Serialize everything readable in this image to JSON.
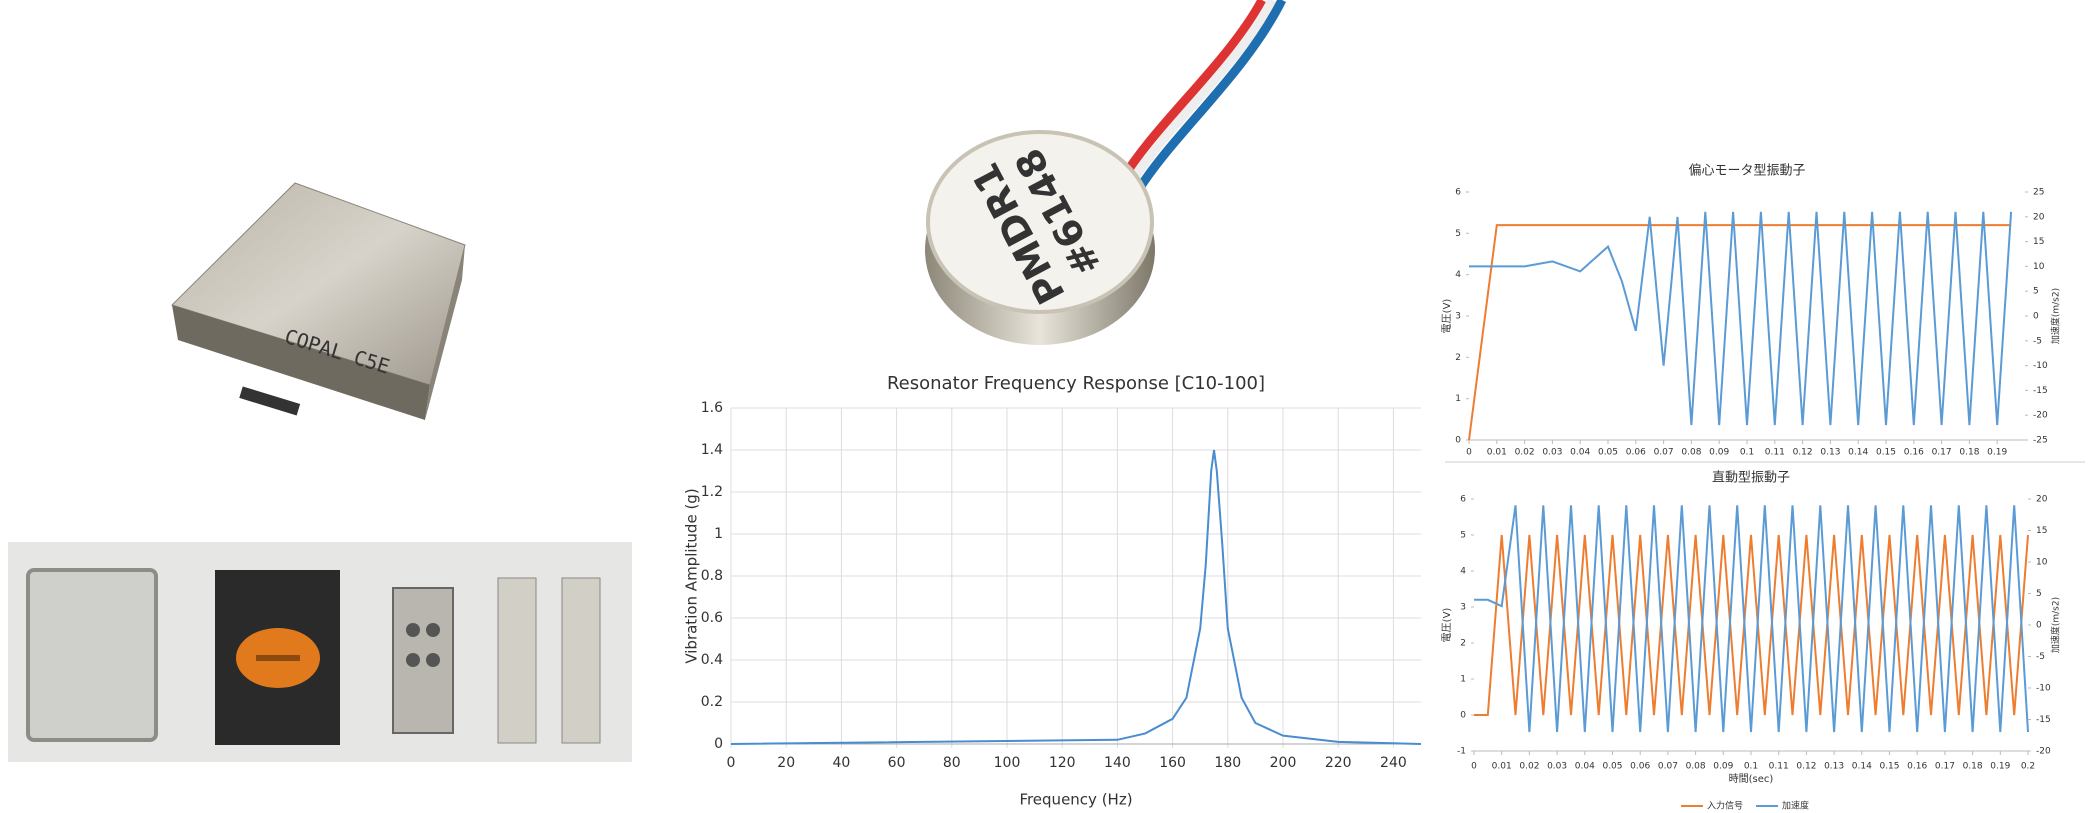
{
  "photos": {
    "module_label": "COPAL C5E",
    "motor_label": "PMDR1",
    "motor_number": "#6148"
  },
  "chart_data": [
    {
      "type": "line",
      "title": "Resonator Frequency Response [C10-100]",
      "xlabel": "Frequency (Hz)",
      "ylabel": "Vibration Amplitude (g)",
      "x": [
        0,
        140,
        150,
        160,
        165,
        170,
        172,
        174,
        175,
        176,
        178,
        180,
        185,
        190,
        200,
        220,
        250
      ],
      "values": [
        0,
        0.02,
        0.05,
        0.12,
        0.22,
        0.55,
        0.85,
        1.3,
        1.4,
        1.3,
        0.95,
        0.55,
        0.22,
        0.1,
        0.04,
        0.01,
        0
      ],
      "color": "#4a8cd0",
      "xlim": [
        0,
        250
      ],
      "xticks": [
        0,
        20,
        40,
        60,
        80,
        100,
        120,
        140,
        160,
        180,
        200,
        220,
        240
      ],
      "ylim": [
        0,
        1.6
      ],
      "yticks": [
        0,
        0.2,
        0.4,
        0.6,
        0.8,
        1,
        1.2,
        1.4,
        1.6
      ],
      "grid": true
    },
    {
      "type": "line",
      "title": "偏心モータ型振動子",
      "ylabel": "電圧(V)",
      "y2label": "加速度(m/s2)",
      "x": [
        0,
        0.01,
        0.02,
        0.03,
        0.04,
        0.05,
        0.055,
        0.06,
        0.065,
        0.07,
        0.075,
        0.08,
        0.085,
        0.09,
        0.095,
        0.1,
        0.105,
        0.11,
        0.115,
        0.12,
        0.125,
        0.13,
        0.135,
        0.14,
        0.145,
        0.15,
        0.155,
        0.16,
        0.165,
        0.17,
        0.175,
        0.18,
        0.185,
        0.19,
        0.195
      ],
      "series": [
        {
          "color": "#ed7d31",
          "values": [
            0,
            5.2,
            5.2,
            5.2,
            5.2,
            5.2,
            5.2,
            5.2,
            5.2,
            5.2,
            5.2,
            5.2,
            5.2,
            5.2,
            5.2,
            5.2,
            5.2,
            5.2,
            5.2,
            5.2,
            5.2,
            5.2,
            5.2,
            5.2,
            5.2,
            5.2,
            5.2,
            5.2,
            5.2,
            5.2,
            5.2,
            5.2,
            5.2,
            5.2,
            5.2
          ]
        },
        {
          "color": "#5b9bd5",
          "axis": "y2",
          "values": [
            10,
            10,
            10,
            11,
            9,
            14,
            7,
            -3,
            20,
            -10,
            20,
            -22,
            21,
            -22,
            21,
            -22,
            21,
            -22,
            21,
            -22,
            21,
            -22,
            21,
            -22,
            21,
            -22,
            21,
            -22,
            21,
            -22,
            21,
            -22,
            21,
            -22,
            21
          ]
        }
      ],
      "xlim": [
        0,
        0.2
      ],
      "xticks": [
        0,
        0.01,
        0.02,
        0.03,
        0.04,
        0.05,
        0.06,
        0.07,
        0.08,
        0.09,
        0.1,
        0.11,
        0.12,
        0.13,
        0.14,
        0.15,
        0.16,
        0.17,
        0.18,
        0.19
      ],
      "ylim": [
        0,
        6
      ],
      "yticks": [
        0,
        1,
        2,
        3,
        4,
        5,
        6
      ],
      "y2lim": [
        -25,
        25
      ],
      "y2ticks": [
        -25,
        -20,
        -15,
        -10,
        -5,
        0,
        5,
        10,
        15,
        20,
        25
      ]
    },
    {
      "type": "line",
      "title": "直動型振動子",
      "xlabel": "時間(sec)",
      "ylabel": "電圧(V)",
      "y2label": "加速度(m/s2)",
      "legend": "bottom",
      "x": [
        0,
        0.005,
        0.01,
        0.015,
        0.02,
        0.025,
        0.03,
        0.035,
        0.04,
        0.045,
        0.05,
        0.055,
        0.06,
        0.065,
        0.07,
        0.075,
        0.08,
        0.085,
        0.09,
        0.095,
        0.1,
        0.105,
        0.11,
        0.115,
        0.12,
        0.125,
        0.13,
        0.135,
        0.14,
        0.145,
        0.15,
        0.155,
        0.16,
        0.165,
        0.17,
        0.175,
        0.18,
        0.185,
        0.19,
        0.195,
        0.2
      ],
      "series": [
        {
          "name": "入力信号",
          "color": "#ed7d31",
          "values": [
            0,
            0,
            5,
            0,
            5,
            0,
            5,
            0,
            5,
            0,
            5,
            0,
            5,
            0,
            5,
            0,
            5,
            0,
            5,
            0,
            5,
            0,
            5,
            0,
            5,
            0,
            5,
            0,
            5,
            0,
            5,
            0,
            5,
            0,
            5,
            0,
            5,
            0,
            5,
            0,
            5
          ]
        },
        {
          "name": "加速度",
          "color": "#5b9bd5",
          "axis": "y2",
          "values": [
            4,
            4,
            3,
            19,
            -17,
            19,
            -17,
            19,
            -17,
            19,
            -17,
            19,
            -17,
            19,
            -17,
            19,
            -17,
            19,
            -17,
            19,
            -17,
            19,
            -17,
            19,
            -17,
            19,
            -17,
            19,
            -17,
            19,
            -17,
            19,
            -17,
            19,
            -17,
            19,
            -17,
            19,
            -17,
            19,
            -17
          ]
        }
      ],
      "xlim": [
        0,
        0.2
      ],
      "xticks": [
        0,
        0.01,
        0.02,
        0.03,
        0.04,
        0.05,
        0.06,
        0.07,
        0.08,
        0.09,
        0.1,
        0.11,
        0.12,
        0.13,
        0.14,
        0.15,
        0.16,
        0.17,
        0.18,
        0.19,
        0.2
      ],
      "ylim": [
        -1,
        6
      ],
      "yticks": [
        -1,
        0,
        1,
        2,
        3,
        4,
        5,
        6
      ],
      "y2lim": [
        -20,
        20
      ],
      "y2ticks": [
        -20,
        -15,
        -10,
        -5,
        0,
        5,
        10,
        15,
        20
      ]
    }
  ]
}
